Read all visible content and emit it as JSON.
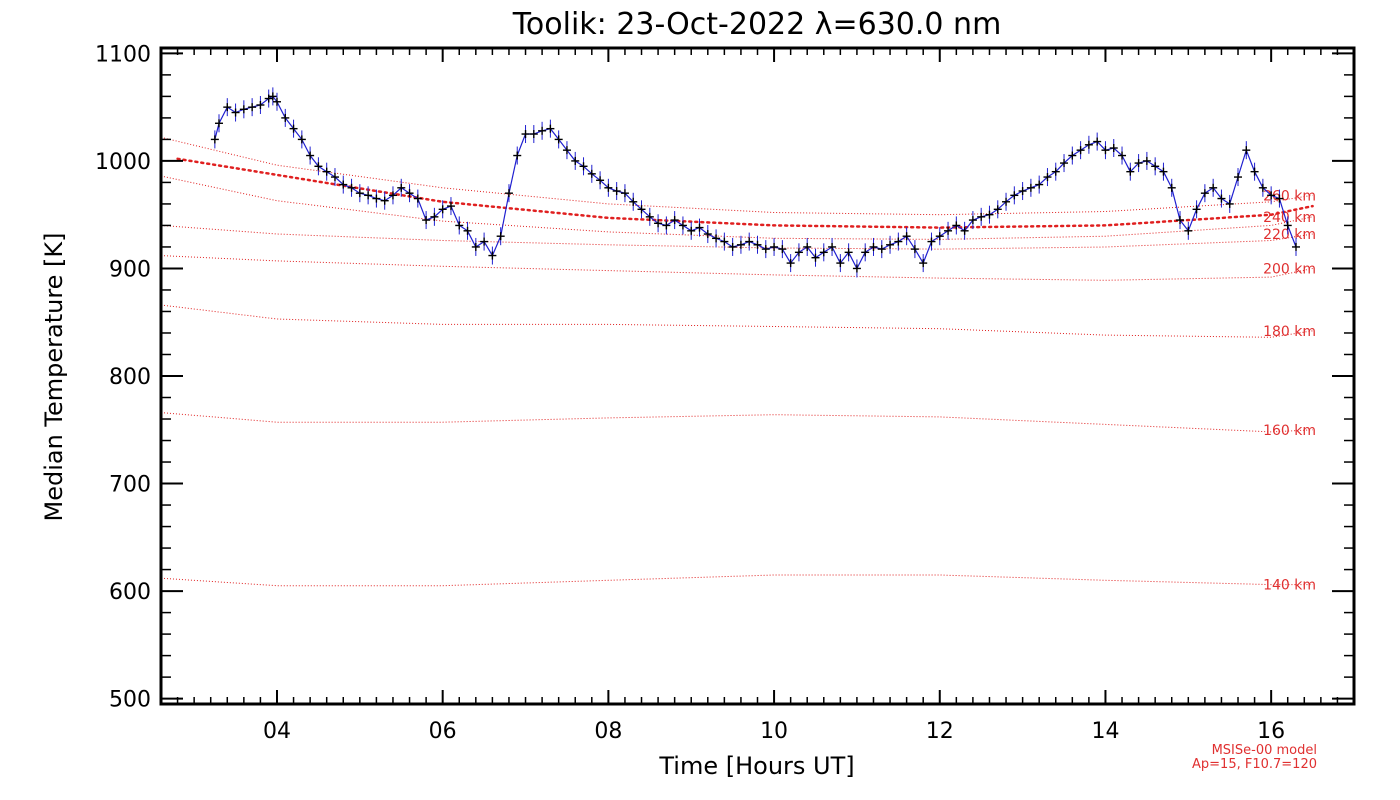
{
  "chart_data": {
    "type": "line",
    "title": "Toolik: 23-Oct-2022 λ=630.0 nm",
    "xlabel": "Time [Hours UT]",
    "ylabel": "Median Temperature [K]",
    "xlim": [
      2.6,
      17.0
    ],
    "ylim": [
      495,
      1105
    ],
    "x_ticks": [
      4,
      6,
      8,
      10,
      12,
      14,
      16
    ],
    "x_tick_labels": [
      "04",
      "06",
      "08",
      "10",
      "12",
      "14",
      "16"
    ],
    "y_ticks": [
      500,
      600,
      700,
      800,
      900,
      1000,
      1100
    ],
    "y_tick_labels": [
      "500",
      "600",
      "700",
      "800",
      "900",
      "1000",
      "1100"
    ],
    "grid": false,
    "note_lines": [
      "MSISe-00 model",
      "Ap=15, F10.7=120"
    ],
    "colors": {
      "measured": "#000000",
      "error_bars": "#1f1fd0",
      "model": "#e02020",
      "model_labels": "#e03030"
    },
    "series": [
      {
        "x": [
          3.25,
          3.3,
          3.4,
          3.5,
          3.6,
          3.7,
          3.8,
          3.9,
          3.95,
          4.0,
          4.1,
          4.2,
          4.3,
          4.4,
          4.5,
          4.6,
          4.7,
          4.8,
          4.9,
          5.0,
          5.1,
          5.2,
          5.3,
          5.4,
          5.5,
          5.6,
          5.7,
          5.8,
          5.9,
          6.0,
          6.1,
          6.2,
          6.3,
          6.4,
          6.5,
          6.6,
          6.7,
          6.8,
          6.9,
          7.0,
          7.1,
          7.2,
          7.3,
          7.4,
          7.5,
          7.6,
          7.7,
          7.8,
          7.9,
          8.0,
          8.1,
          8.2,
          8.3,
          8.4,
          8.5,
          8.6,
          8.7,
          8.8,
          8.9,
          9.0,
          9.1,
          9.2,
          9.3,
          9.4,
          9.5,
          9.6,
          9.7,
          9.8,
          9.9,
          10.0,
          10.1,
          10.2,
          10.3,
          10.4,
          10.5,
          10.6,
          10.7,
          10.8,
          10.9,
          11.0,
          11.1,
          11.2,
          11.3,
          11.4,
          11.5,
          11.6,
          11.7,
          11.8,
          11.9,
          12.0,
          12.1,
          12.2,
          12.3,
          12.4,
          12.5,
          12.6,
          12.7,
          12.8,
          12.9,
          13.0,
          13.1,
          13.2,
          13.3,
          13.4,
          13.5,
          13.6,
          13.7,
          13.8,
          13.9,
          14.0,
          14.1,
          14.2,
          14.3,
          14.4,
          14.5,
          14.6,
          14.7,
          14.8,
          14.9,
          15.0,
          15.1,
          15.2,
          15.3,
          15.4,
          15.5,
          15.6,
          15.7,
          15.8,
          15.9,
          16.0,
          16.1,
          16.2,
          16.3
        ],
        "values": [
          1020,
          1035,
          1050,
          1045,
          1048,
          1050,
          1052,
          1058,
          1060,
          1055,
          1040,
          1030,
          1020,
          1005,
          995,
          990,
          985,
          978,
          975,
          970,
          968,
          965,
          963,
          968,
          975,
          970,
          965,
          945,
          948,
          955,
          958,
          940,
          935,
          920,
          925,
          912,
          930,
          970,
          1005,
          1025,
          1025,
          1028,
          1030,
          1020,
          1010,
          1000,
          995,
          988,
          982,
          975,
          972,
          970,
          962,
          955,
          948,
          942,
          940,
          945,
          940,
          935,
          938,
          932,
          928,
          925,
          920,
          922,
          925,
          922,
          918,
          920,
          918,
          905,
          915,
          920,
          910,
          915,
          920,
          905,
          915,
          900,
          915,
          920,
          918,
          922,
          925,
          930,
          918,
          905,
          925,
          930,
          935,
          940,
          935,
          945,
          948,
          950,
          955,
          962,
          968,
          972,
          975,
          978,
          985,
          990,
          998,
          1005,
          1010,
          1015,
          1018,
          1010,
          1012,
          1005,
          990,
          998,
          1000,
          995,
          990,
          975,
          945,
          935,
          955,
          970,
          975,
          965,
          960,
          985,
          1010,
          990,
          975,
          968,
          965,
          940,
          920
        ]
      }
    ],
    "model_curves": [
      {
        "altitude": 140,
        "label": "140 km",
        "x": [
          2.6,
          4.0,
          6.0,
          8.0,
          10.0,
          12.0,
          14.0,
          16.0,
          16.5
        ],
        "values": [
          612,
          605,
          605,
          610,
          615,
          615,
          610,
          606,
          606
        ]
      },
      {
        "altitude": 160,
        "label": "160 km",
        "x": [
          2.6,
          4.0,
          6.0,
          8.0,
          10.0,
          12.0,
          14.0,
          16.0,
          16.5
        ],
        "values": [
          766,
          757,
          757,
          761,
          764,
          762,
          755,
          748,
          750
        ]
      },
      {
        "altitude": 180,
        "label": "180 km",
        "x": [
          2.6,
          4.0,
          6.0,
          8.0,
          10.0,
          12.0,
          14.0,
          16.0,
          16.5
        ],
        "values": [
          866,
          853,
          848,
          848,
          846,
          844,
          838,
          836,
          842
        ]
      },
      {
        "altitude": 200,
        "label": "200 km",
        "x": [
          2.6,
          4.0,
          6.0,
          8.0,
          10.0,
          12.0,
          14.0,
          16.0,
          16.5
        ],
        "values": [
          912,
          907,
          902,
          898,
          894,
          891,
          889,
          892,
          900
        ]
      },
      {
        "altitude": 220,
        "label": "220 km",
        "x": [
          2.6,
          4.0,
          6.0,
          8.0,
          10.0,
          12.0,
          14.0,
          16.0,
          16.5
        ],
        "values": [
          940,
          932,
          926,
          922,
          919,
          918,
          920,
          926,
          932
        ]
      },
      {
        "altitude": 240,
        "label": "240 km",
        "x": [
          2.6,
          4.0,
          6.0,
          8.0,
          10.0,
          12.0,
          14.0,
          16.0,
          16.5
        ],
        "values": [
          986,
          963,
          944,
          934,
          928,
          927,
          930,
          940,
          948
        ]
      },
      {
        "altitude": 260,
        "label": "260 km",
        "x": [
          2.6,
          4.0,
          6.0,
          8.0,
          10.0,
          12.0,
          14.0,
          16.0,
          16.5
        ],
        "values": [
          1022,
          996,
          975,
          960,
          952,
          950,
          953,
          962,
          968
        ]
      }
    ],
    "fit_curve": {
      "x": [
        2.8,
        4.0,
        6.0,
        8.0,
        10.0,
        12.0,
        14.0,
        16.0,
        16.5
      ],
      "values": [
        1002,
        987,
        962,
        947,
        940,
        938,
        940,
        950,
        958
      ]
    }
  }
}
